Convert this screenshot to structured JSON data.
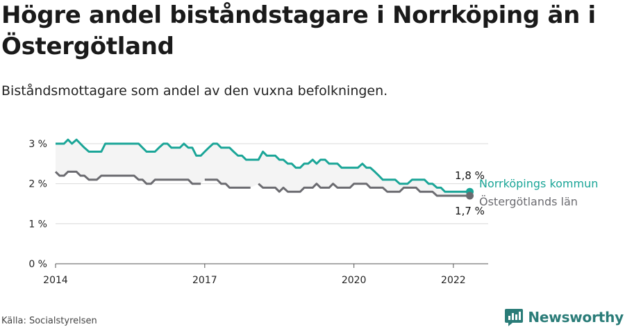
{
  "title": "Högre andel biståndstagare i Norrköping än i Östergötland",
  "subtitle": "Biståndsmottagare som andel av den vuxna befolkningen.",
  "source": "Källa: Socialstyrelsen",
  "brand": {
    "name": "Newsworthy",
    "logo_icon": "bar-chart-logo-icon",
    "color": "#2a7c78"
  },
  "chart_data": {
    "type": "line",
    "xlim": [
      2014,
      2022.7
    ],
    "ylim": [
      0,
      3
    ],
    "x_ticks": [
      2014,
      2017,
      2020,
      2022
    ],
    "x_tick_labels": [
      "2014",
      "2017",
      "2020",
      "2022"
    ],
    "y_ticks": [
      0,
      1,
      2,
      3
    ],
    "y_tick_labels": [
      "0 %",
      "1 %",
      "2 %",
      "3 %"
    ],
    "grid": true,
    "area_between_series": true,
    "series": [
      {
        "name": "Norrköpings kommun",
        "color": "#1aa597",
        "end_label": "1,8 %",
        "points": [
          [
            2014.0,
            3.0
          ],
          [
            2014.08,
            3.0
          ],
          [
            2014.17,
            3.0
          ],
          [
            2014.25,
            3.1
          ],
          [
            2014.33,
            3.0
          ],
          [
            2014.42,
            3.1
          ],
          [
            2014.5,
            3.0
          ],
          [
            2014.58,
            2.9
          ],
          [
            2014.67,
            2.8
          ],
          [
            2014.75,
            2.8
          ],
          [
            2014.83,
            2.8
          ],
          [
            2014.92,
            2.8
          ],
          [
            2015.0,
            3.0
          ],
          [
            2015.08,
            3.0
          ],
          [
            2015.17,
            3.0
          ],
          [
            2015.25,
            3.0
          ],
          [
            2015.33,
            3.0
          ],
          [
            2015.42,
            3.0
          ],
          [
            2015.5,
            3.0
          ],
          [
            2015.58,
            3.0
          ],
          [
            2015.67,
            3.0
          ],
          [
            2015.75,
            2.9
          ],
          [
            2015.83,
            2.8
          ],
          [
            2015.92,
            2.8
          ],
          [
            2016.0,
            2.8
          ],
          [
            2016.08,
            2.9
          ],
          [
            2016.17,
            3.0
          ],
          [
            2016.25,
            3.0
          ],
          [
            2016.33,
            2.9
          ],
          [
            2016.42,
            2.9
          ],
          [
            2016.5,
            2.9
          ],
          [
            2016.58,
            3.0
          ],
          [
            2016.67,
            2.9
          ],
          [
            2016.75,
            2.9
          ],
          [
            2016.83,
            2.7
          ],
          [
            2016.92,
            2.7
          ],
          [
            2017.0,
            2.8
          ],
          [
            2017.08,
            2.9
          ],
          [
            2017.17,
            3.0
          ],
          [
            2017.25,
            3.0
          ],
          [
            2017.33,
            2.9
          ],
          [
            2017.42,
            2.9
          ],
          [
            2017.5,
            2.9
          ],
          [
            2017.58,
            2.8
          ],
          [
            2017.67,
            2.7
          ],
          [
            2017.75,
            2.7
          ],
          [
            2017.83,
            2.6
          ],
          [
            2017.92,
            2.6
          ],
          [
            2018.0,
            2.6
          ],
          [
            2018.08,
            2.6
          ],
          [
            2018.17,
            2.8
          ],
          [
            2018.25,
            2.7
          ],
          [
            2018.33,
            2.7
          ],
          [
            2018.42,
            2.7
          ],
          [
            2018.5,
            2.6
          ],
          [
            2018.58,
            2.6
          ],
          [
            2018.67,
            2.5
          ],
          [
            2018.75,
            2.5
          ],
          [
            2018.83,
            2.4
          ],
          [
            2018.92,
            2.4
          ],
          [
            2019.0,
            2.5
          ],
          [
            2019.08,
            2.5
          ],
          [
            2019.17,
            2.6
          ],
          [
            2019.25,
            2.5
          ],
          [
            2019.33,
            2.6
          ],
          [
            2019.42,
            2.6
          ],
          [
            2019.5,
            2.5
          ],
          [
            2019.58,
            2.5
          ],
          [
            2019.67,
            2.5
          ],
          [
            2019.75,
            2.4
          ],
          [
            2019.83,
            2.4
          ],
          [
            2019.92,
            2.4
          ],
          [
            2020.0,
            2.4
          ],
          [
            2020.08,
            2.4
          ],
          [
            2020.17,
            2.5
          ],
          [
            2020.25,
            2.4
          ],
          [
            2020.33,
            2.4
          ],
          [
            2020.42,
            2.3
          ],
          [
            2020.5,
            2.2
          ],
          [
            2020.58,
            2.1
          ],
          [
            2020.67,
            2.1
          ],
          [
            2020.75,
            2.1
          ],
          [
            2020.83,
            2.1
          ],
          [
            2020.92,
            2.0
          ],
          [
            2021.0,
            2.0
          ],
          [
            2021.08,
            2.0
          ],
          [
            2021.17,
            2.1
          ],
          [
            2021.25,
            2.1
          ],
          [
            2021.33,
            2.1
          ],
          [
            2021.42,
            2.1
          ],
          [
            2021.5,
            2.0
          ],
          [
            2021.58,
            2.0
          ],
          [
            2021.67,
            1.9
          ],
          [
            2021.75,
            1.9
          ],
          [
            2021.83,
            1.8
          ],
          [
            2021.92,
            1.8
          ],
          [
            2022.0,
            1.8
          ],
          [
            2022.08,
            1.8
          ],
          [
            2022.17,
            1.8
          ],
          [
            2022.25,
            1.8
          ],
          [
            2022.33,
            1.8
          ]
        ]
      },
      {
        "name": "Östergötlands län",
        "color": "#6b6b70",
        "end_label": "1,7 %",
        "points": [
          [
            2014.0,
            2.3
          ],
          [
            2014.08,
            2.2
          ],
          [
            2014.17,
            2.2
          ],
          [
            2014.25,
            2.3
          ],
          [
            2014.33,
            2.3
          ],
          [
            2014.42,
            2.3
          ],
          [
            2014.5,
            2.2
          ],
          [
            2014.58,
            2.2
          ],
          [
            2014.67,
            2.1
          ],
          [
            2014.75,
            2.1
          ],
          [
            2014.83,
            2.1
          ],
          [
            2014.92,
            2.2
          ],
          [
            2015.0,
            2.2
          ],
          [
            2015.08,
            2.2
          ],
          [
            2015.17,
            2.2
          ],
          [
            2015.25,
            2.2
          ],
          [
            2015.33,
            2.2
          ],
          [
            2015.42,
            2.2
          ],
          [
            2015.5,
            2.2
          ],
          [
            2015.58,
            2.2
          ],
          [
            2015.67,
            2.1
          ],
          [
            2015.75,
            2.1
          ],
          [
            2015.83,
            2.0
          ],
          [
            2015.92,
            2.0
          ],
          [
            2016.0,
            2.1
          ],
          [
            2016.08,
            2.1
          ],
          [
            2016.17,
            2.1
          ],
          [
            2016.25,
            2.1
          ],
          [
            2016.33,
            2.1
          ],
          [
            2016.42,
            2.1
          ],
          [
            2016.5,
            2.1
          ],
          [
            2016.58,
            2.1
          ],
          [
            2016.67,
            2.1
          ],
          [
            2016.75,
            2.0
          ],
          [
            2016.83,
            2.0
          ],
          [
            2016.92,
            2.0
          ],
          null,
          [
            2017.0,
            2.1
          ],
          [
            2017.08,
            2.1
          ],
          [
            2017.17,
            2.1
          ],
          [
            2017.25,
            2.1
          ],
          [
            2017.33,
            2.0
          ],
          [
            2017.42,
            2.0
          ],
          [
            2017.5,
            1.9
          ],
          [
            2017.58,
            1.9
          ],
          [
            2017.67,
            1.9
          ],
          [
            2017.75,
            1.9
          ],
          [
            2017.83,
            1.9
          ],
          [
            2017.92,
            1.9
          ],
          null,
          [
            2018.08,
            2.0
          ],
          [
            2018.17,
            1.9
          ],
          [
            2018.25,
            1.9
          ],
          [
            2018.33,
            1.9
          ],
          [
            2018.42,
            1.9
          ],
          [
            2018.5,
            1.8
          ],
          [
            2018.58,
            1.9
          ],
          [
            2018.67,
            1.8
          ],
          [
            2018.75,
            1.8
          ],
          [
            2018.83,
            1.8
          ],
          [
            2018.92,
            1.8
          ],
          [
            2019.0,
            1.9
          ],
          [
            2019.08,
            1.9
          ],
          [
            2019.17,
            1.9
          ],
          [
            2019.25,
            2.0
          ],
          [
            2019.33,
            1.9
          ],
          [
            2019.42,
            1.9
          ],
          [
            2019.5,
            1.9
          ],
          [
            2019.58,
            2.0
          ],
          [
            2019.67,
            1.9
          ],
          [
            2019.75,
            1.9
          ],
          [
            2019.83,
            1.9
          ],
          [
            2019.92,
            1.9
          ],
          [
            2020.0,
            2.0
          ],
          [
            2020.08,
            2.0
          ],
          [
            2020.17,
            2.0
          ],
          [
            2020.25,
            2.0
          ],
          [
            2020.33,
            1.9
          ],
          [
            2020.42,
            1.9
          ],
          [
            2020.5,
            1.9
          ],
          [
            2020.58,
            1.9
          ],
          [
            2020.67,
            1.8
          ],
          [
            2020.75,
            1.8
          ],
          [
            2020.83,
            1.8
          ],
          [
            2020.92,
            1.8
          ],
          [
            2021.0,
            1.9
          ],
          [
            2021.08,
            1.9
          ],
          [
            2021.17,
            1.9
          ],
          [
            2021.25,
            1.9
          ],
          [
            2021.33,
            1.8
          ],
          [
            2021.42,
            1.8
          ],
          [
            2021.5,
            1.8
          ],
          [
            2021.58,
            1.8
          ],
          [
            2021.67,
            1.7
          ],
          [
            2021.75,
            1.7
          ],
          [
            2021.83,
            1.7
          ],
          [
            2021.92,
            1.7
          ],
          [
            2022.0,
            1.7
          ],
          [
            2022.08,
            1.7
          ],
          [
            2022.17,
            1.7
          ],
          [
            2022.25,
            1.7
          ],
          [
            2022.33,
            1.7
          ]
        ]
      }
    ]
  }
}
